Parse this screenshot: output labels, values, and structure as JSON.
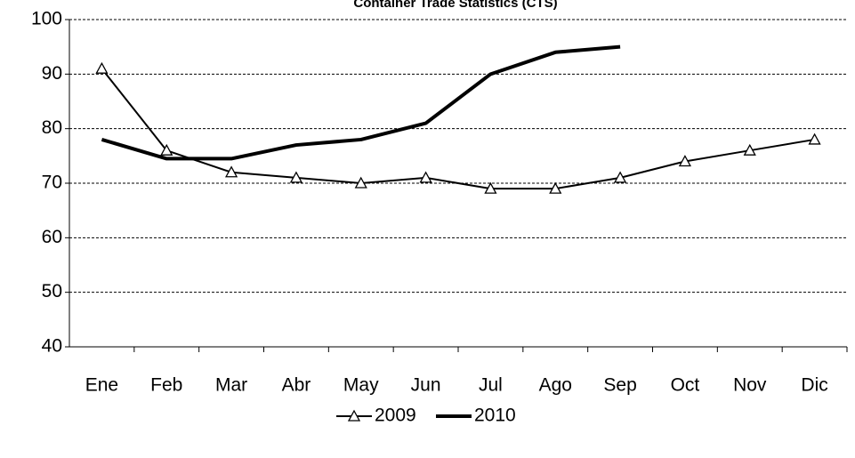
{
  "chart_data": {
    "type": "line",
    "title": "Container Trade Statistics (CTS)",
    "categories": [
      "Ene",
      "Feb",
      "Mar",
      "Abr",
      "May",
      "Jun",
      "Jul",
      "Ago",
      "Sep",
      "Oct",
      "Nov",
      "Dic"
    ],
    "series": [
      {
        "name": "2009",
        "color": "#000000",
        "marker": "triangle",
        "line_width": 2,
        "values": [
          91,
          76,
          72,
          71,
          70,
          71,
          69,
          69,
          71,
          74,
          76,
          78
        ]
      },
      {
        "name": "2010",
        "color": "#000000",
        "marker": null,
        "line_width": 4,
        "values": [
          78,
          74.5,
          74.5,
          77,
          78,
          81,
          90,
          94,
          95,
          null,
          null,
          null
        ]
      }
    ],
    "ylim": [
      40,
      100
    ],
    "yticks": [
      40,
      50,
      60,
      70,
      80,
      90,
      100
    ],
    "grid": true,
    "legend": "bottom"
  }
}
